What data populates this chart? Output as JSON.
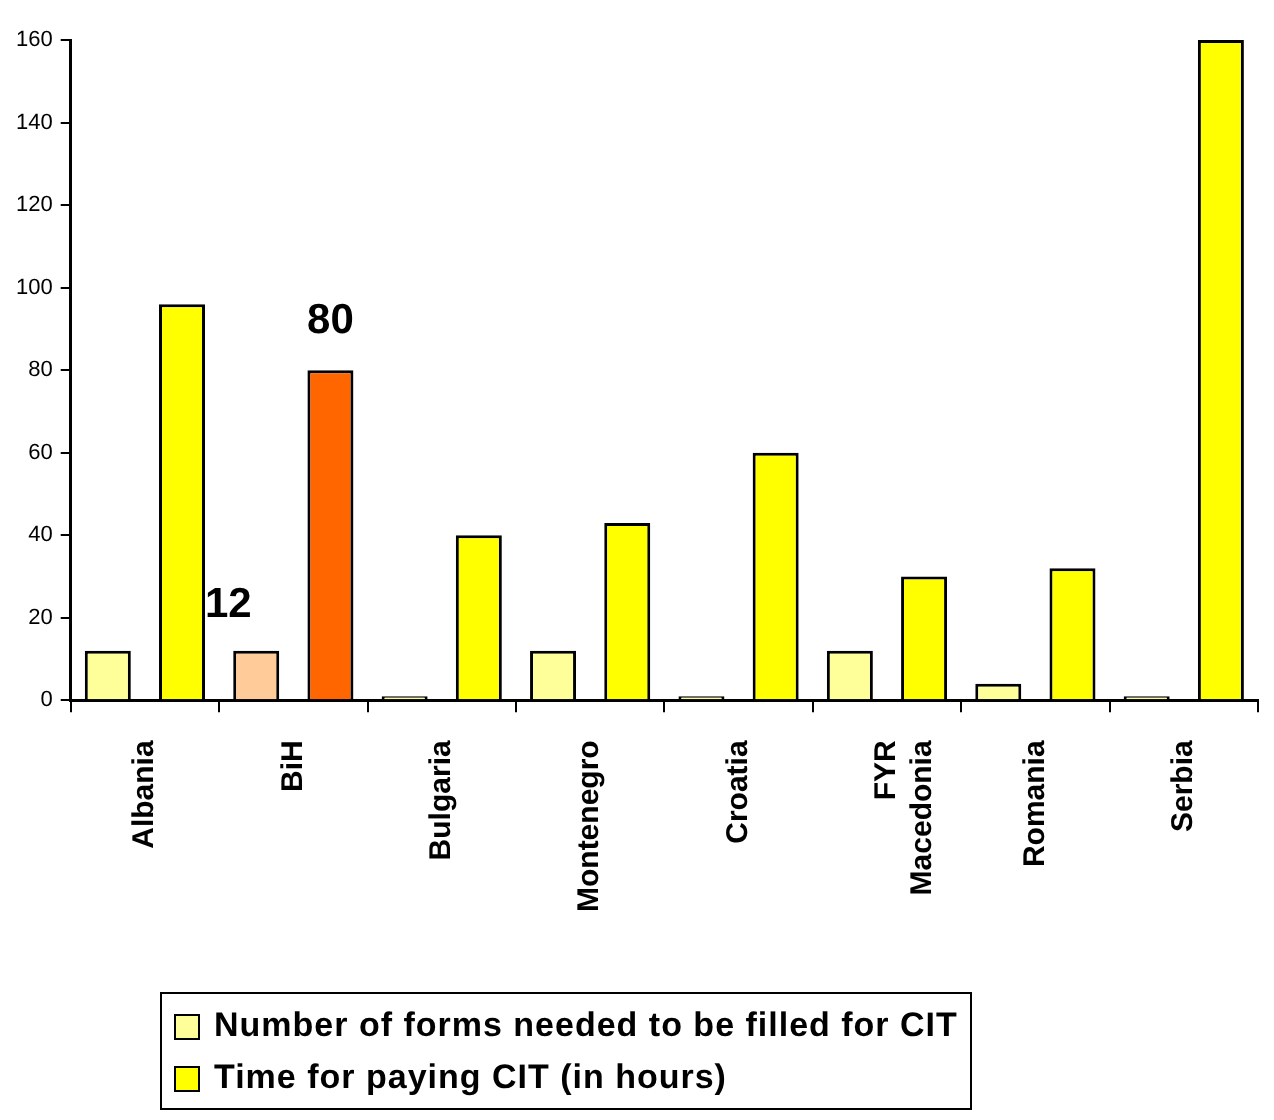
{
  "chart_data": {
    "type": "bar",
    "categories": [
      "Albania",
      "BiH",
      "Bulgaria",
      "Montenegro",
      "Croatia",
      "FYR Macedonia",
      "Romania",
      "Serbia"
    ],
    "series": [
      {
        "name": "Number of forms needed to be filled for CIT",
        "color": "#ffff99",
        "colors": [
          "#ffff99",
          "#ffcc99",
          "#ffff99",
          "#ffff99",
          "#ffff99",
          "#ffff99",
          "#ffff99",
          "#ffff99"
        ],
        "values": [
          12,
          12,
          1,
          12,
          1,
          12,
          4,
          1
        ],
        "value_labels": [
          null,
          "12",
          null,
          null,
          null,
          null,
          null,
          null
        ]
      },
      {
        "name": "Time for paying CIT  (in hours)",
        "color": "#ffff00",
        "colors": [
          "#ffff00",
          "#ff6600",
          "#ffff00",
          "#ffff00",
          "#ffff00",
          "#ffff00",
          "#ffff00",
          "#ffff00"
        ],
        "values": [
          96,
          80,
          40,
          43,
          60,
          30,
          32,
          160
        ],
        "value_labels": [
          null,
          "80",
          null,
          null,
          null,
          null,
          null,
          null
        ]
      }
    ],
    "ylim": [
      0,
      160
    ],
    "yticks": [
      0,
      20,
      40,
      60,
      80,
      100,
      120,
      140,
      160
    ],
    "grid": false,
    "legend": "bottom"
  }
}
